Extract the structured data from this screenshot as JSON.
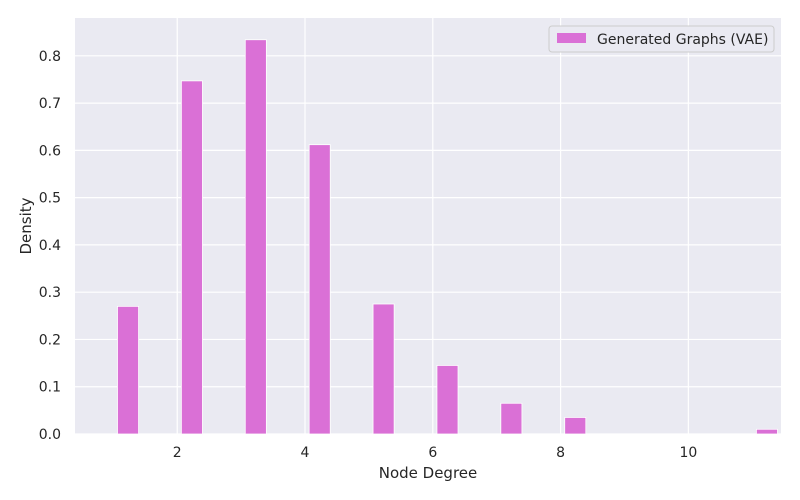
{
  "chart_data": {
    "type": "bar",
    "xlabel": "Node Degree",
    "ylabel": "Density",
    "xlim": [
      0.4,
      11.45
    ],
    "ylim": [
      0,
      0.88
    ],
    "xticks": [
      2,
      4,
      6,
      8,
      10
    ],
    "yticks": [
      0.0,
      0.1,
      0.2,
      0.3,
      0.4,
      0.5,
      0.6,
      0.7,
      0.8
    ],
    "grid": true,
    "legend_position": "top-right",
    "bar_width": 0.33,
    "series": [
      {
        "name": "Generated Graphs (VAE)",
        "color": "#da70d6",
        "x": [
          1.23,
          2.23,
          3.23,
          4.23,
          5.23,
          6.23,
          7.23,
          8.23,
          9.23,
          10.23,
          11.23
        ],
        "values": [
          0.27,
          0.747,
          0.834,
          0.612,
          0.275,
          0.145,
          0.065,
          0.035,
          0.0,
          0.0,
          0.01
        ]
      }
    ]
  }
}
